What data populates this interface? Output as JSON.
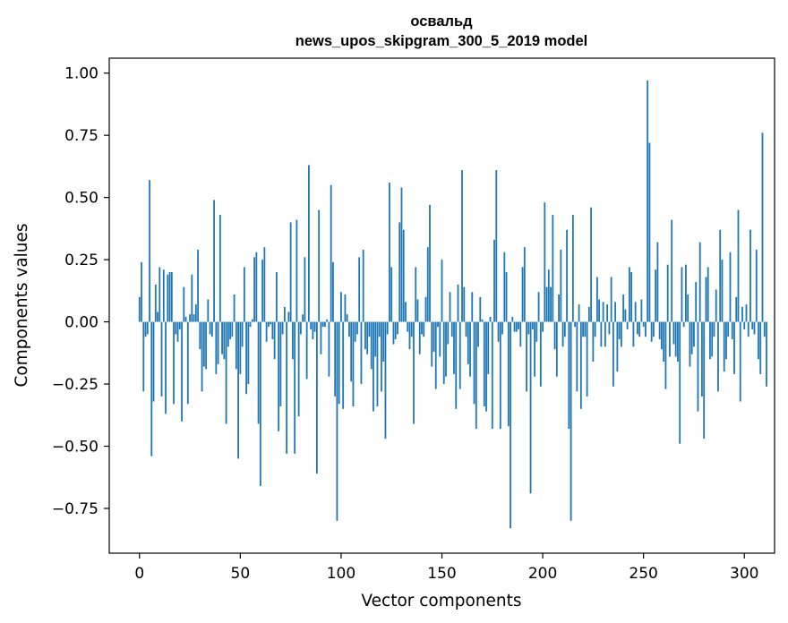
{
  "chart_data": {
    "type": "bar",
    "title": "освальд",
    "subtitle": "news_upos_skipgram_300_5_2019 model",
    "xlabel": "Vector components",
    "ylabel": "Components values",
    "xlim": [
      -15,
      315
    ],
    "ylim": [
      -0.93,
      1.06
    ],
    "xticks": [
      0,
      50,
      100,
      150,
      200,
      250,
      300
    ],
    "yticks": [
      -0.75,
      -0.5,
      -0.25,
      0.0,
      0.25,
      0.5,
      0.75,
      1.0
    ],
    "xtick_labels": [
      "0",
      "50",
      "100",
      "150",
      "200",
      "250",
      "300"
    ],
    "ytick_labels": [
      "−0.75",
      "−0.50",
      "−0.25",
      "0.00",
      "0.25",
      "0.50",
      "0.75",
      "1.00"
    ],
    "grid": false,
    "bar_color": "#1f77b4",
    "x_start": 0,
    "values": [
      0.1,
      0.24,
      -0.28,
      -0.06,
      -0.05,
      0.57,
      -0.54,
      -0.32,
      0.15,
      0.04,
      0.22,
      -0.3,
      0.21,
      -0.37,
      0.19,
      0.2,
      0.2,
      -0.33,
      -0.05,
      -0.08,
      -0.03,
      -0.4,
      0.14,
      0.02,
      -0.33,
      0.03,
      0.19,
      0.03,
      0.07,
      0.29,
      -0.11,
      -0.28,
      -0.18,
      -0.19,
      0.09,
      -0.05,
      -0.06,
      0.49,
      -0.21,
      -0.17,
      0.43,
      -0.13,
      -0.15,
      -0.41,
      -0.1,
      -0.07,
      -0.06,
      0.11,
      -0.19,
      -0.55,
      -0.21,
      -0.1,
      0.22,
      -0.29,
      -0.25,
      -0.02,
      0.01,
      0.26,
      0.28,
      -0.41,
      -0.66,
      0.25,
      0.3,
      -0.08,
      -0.02,
      -0.01,
      -0.07,
      -0.15,
      0.2,
      -0.44,
      -0.34,
      -0.05,
      0.06,
      -0.53,
      0.04,
      0.4,
      -0.15,
      -0.53,
      0.41,
      -0.38,
      -0.05,
      0.03,
      0.26,
      -0.23,
      0.63,
      -0.03,
      -0.07,
      -0.04,
      -0.61,
      0.45,
      -0.13,
      -0.02,
      -0.02,
      0.01,
      -0.22,
      0.55,
      0.24,
      -0.3,
      -0.8,
      -0.33,
      0.12,
      -0.35,
      0.11,
      0.03,
      -0.06,
      -0.24,
      -0.34,
      -0.08,
      -0.05,
      0.26,
      -0.25,
      0.29,
      -0.11,
      -0.13,
      -0.06,
      -0.19,
      -0.36,
      -0.14,
      -0.34,
      -0.06,
      -0.28,
      -0.16,
      -0.47,
      -0.05,
      0.56,
      0.22,
      -0.09,
      -0.07,
      -0.05,
      0.4,
      0.54,
      0.37,
      0.08,
      -0.04,
      -0.11,
      -0.06,
      -0.41,
      0.22,
      0.09,
      -0.13,
      -0.05,
      -0.06,
      0.1,
      0.3,
      0.47,
      -0.18,
      -0.12,
      -0.27,
      -0.02,
      -0.14,
      0.25,
      -0.25,
      -0.22,
      -0.09,
      0.12,
      -0.06,
      -0.21,
      -0.35,
      0.15,
      -0.27,
      0.61,
      0.14,
      -0.06,
      -0.17,
      -0.22,
      0.12,
      -0.33,
      -0.43,
      -0.1,
      0.1,
      0.01,
      -0.34,
      -0.36,
      -0.21,
      0.02,
      -0.43,
      0.33,
      0.61,
      -0.08,
      -0.43,
      -0.05,
      0.28,
      0.2,
      -0.42,
      -0.83,
      0.02,
      -0.04,
      -0.04,
      -0.03,
      -0.1,
      0.22,
      0.3,
      -0.28,
      -0.05,
      -0.69,
      -0.03,
      -0.22,
      -0.08,
      0.12,
      -0.26,
      -0.04,
      0.48,
      0.14,
      0.21,
      0.14,
      0.43,
      -0.11,
      -0.22,
      0.11,
      0.29,
      -0.1,
      -0.06,
      0.37,
      -0.43,
      -0.8,
      0.43,
      -0.02,
      -0.28,
      0.07,
      -0.35,
      -0.06,
      -0.06,
      -0.3,
      0.06,
      0.46,
      -0.16,
      -0.06,
      0.18,
      0.09,
      -0.1,
      0.08,
      -0.1,
      0.07,
      -0.05,
      0.18,
      -0.26,
      0.08,
      -0.2,
      -0.07,
      -0.1,
      0.11,
      0.05,
      -0.03,
      0.22,
      0.2,
      -0.1,
      0.08,
      -0.05,
      -0.06,
      0.09,
      -0.02,
      -0.06,
      0.97,
      0.72,
      -0.08,
      -0.06,
      0.21,
      0.32,
      -0.07,
      -0.11,
      -0.16,
      -0.27,
      0.23,
      -0.14,
      0.41,
      -0.09,
      -0.14,
      -0.16,
      -0.49,
      0.22,
      -0.02,
      0.23,
      0.11,
      -0.18,
      -0.13,
      -0.1,
      0.16,
      -0.36,
      0.32,
      -0.3,
      -0.47,
      0.18,
      0.22,
      -0.15,
      -0.14,
      -0.06,
      0.13,
      -0.28,
      0.37,
      0.25,
      -0.2,
      -0.15,
      -0.06,
      0.28,
      -0.07,
      -0.21,
      0.1,
      0.45,
      -0.32,
      0.06,
      -0.03,
      0.07,
      -0.06,
      0.37,
      -0.03,
      -0.05,
      0.29,
      -0.15,
      -0.21,
      0.76,
      -0.06,
      -0.26
    ]
  }
}
